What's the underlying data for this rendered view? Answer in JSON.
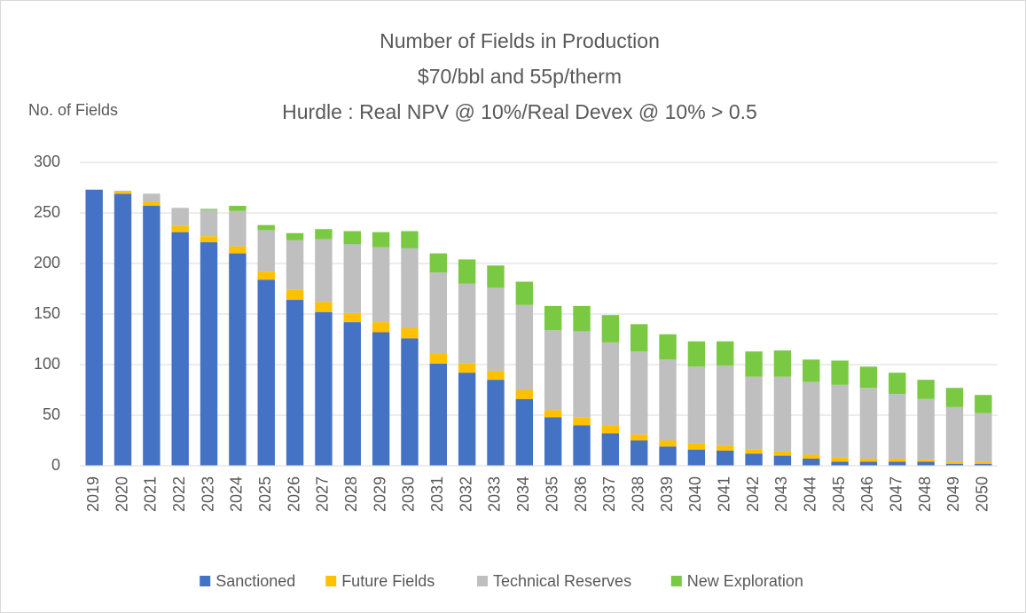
{
  "chart_data": {
    "type": "stacked_bar",
    "title": "Number of Fields in Production",
    "subtitle": [
      "$70/bbl and 55p/therm",
      "Hurdle : Real NPV @ 10%/Real Devex @ 10% > 0.5"
    ],
    "ylabel": "No. of Fields",
    "categories": [
      "2019",
      "2020",
      "2021",
      "2022",
      "2023",
      "2024",
      "2025",
      "2026",
      "2027",
      "2028",
      "2029",
      "2030",
      "2031",
      "2032",
      "2033",
      "2034",
      "2035",
      "2036",
      "2037",
      "2038",
      "2039",
      "2040",
      "2041",
      "2042",
      "2043",
      "2044",
      "2045",
      "2046",
      "2047",
      "2048",
      "2049",
      "2050"
    ],
    "series": [
      {
        "name": "Sanctioned",
        "color": "#4472c4",
        "values": [
          273,
          269,
          257,
          231,
          221,
          210,
          184,
          164,
          152,
          142,
          132,
          126,
          101,
          92,
          85,
          66,
          48,
          40,
          32,
          25,
          19,
          16,
          15,
          12,
          10,
          7,
          4,
          4,
          4,
          4,
          2,
          2
        ]
      },
      {
        "name": "Future Fields",
        "color": "#ffc000",
        "values": [
          0,
          2,
          4,
          6,
          6,
          7,
          8,
          10,
          10,
          9,
          10,
          10,
          10,
          9,
          9,
          9,
          7,
          8,
          8,
          6,
          6,
          6,
          5,
          4,
          4,
          4,
          4,
          3,
          3,
          2,
          2,
          2
        ]
      },
      {
        "name": "Technical Reserves",
        "color": "#bfbfbf",
        "values": [
          0,
          1,
          8,
          18,
          26,
          35,
          41,
          49,
          62,
          68,
          74,
          79,
          80,
          79,
          82,
          84,
          79,
          85,
          82,
          82,
          80,
          76,
          79,
          72,
          74,
          72,
          72,
          70,
          64,
          60,
          54,
          48
        ]
      },
      {
        "name": "New Exploration",
        "color": "#7ac943",
        "values": [
          0,
          0,
          0,
          0,
          1,
          5,
          5,
          7,
          10,
          13,
          15,
          17,
          19,
          24,
          22,
          23,
          24,
          25,
          27,
          27,
          25,
          25,
          24,
          25,
          26,
          22,
          24,
          21,
          21,
          19,
          19,
          18
        ]
      }
    ],
    "ylim": [
      0,
      300
    ],
    "yticks": [
      0,
      50,
      100,
      150,
      200,
      250,
      300
    ],
    "grid": true,
    "legend": "bottom"
  }
}
